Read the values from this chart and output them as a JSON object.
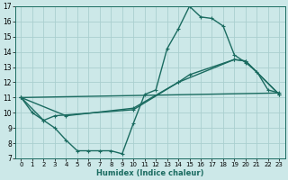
{
  "xlabel": "Humidex (Indice chaleur)",
  "xlim": [
    -0.5,
    23.5
  ],
  "ylim": [
    7,
    17
  ],
  "xticks": [
    0,
    1,
    2,
    3,
    4,
    5,
    6,
    7,
    8,
    9,
    10,
    11,
    12,
    13,
    14,
    15,
    16,
    17,
    18,
    19,
    20,
    21,
    22,
    23
  ],
  "yticks": [
    7,
    8,
    9,
    10,
    11,
    12,
    13,
    14,
    15,
    16,
    17
  ],
  "bg_color": "#cce8e8",
  "grid_color": "#aacfcf",
  "line_color": "#1a6b60",
  "series": [
    {
      "x": [
        0,
        1,
        2,
        3,
        4,
        5,
        6,
        7,
        8,
        9,
        10,
        11,
        12,
        13,
        14,
        15,
        16,
        17,
        18,
        19,
        20,
        21,
        22,
        23
      ],
      "y": [
        11,
        10,
        9.5,
        9.0,
        8.2,
        7.5,
        7.5,
        7.5,
        7.5,
        7.3,
        9.3,
        11.2,
        11.5,
        14.2,
        15.5,
        17.0,
        16.3,
        16.2,
        15.7,
        13.8,
        13.3,
        12.7,
        11.5,
        11.3
      ]
    },
    {
      "x": [
        0,
        23
      ],
      "y": [
        11,
        11.3
      ]
    },
    {
      "x": [
        0,
        2,
        3,
        10,
        14,
        15,
        19,
        20,
        23
      ],
      "y": [
        11,
        9.5,
        9.8,
        10.2,
        12.0,
        12.5,
        13.5,
        13.4,
        11.2
      ]
    },
    {
      "x": [
        0,
        4,
        10,
        14,
        19,
        20,
        23
      ],
      "y": [
        11,
        9.8,
        10.3,
        12.0,
        13.5,
        13.4,
        11.2
      ]
    }
  ]
}
